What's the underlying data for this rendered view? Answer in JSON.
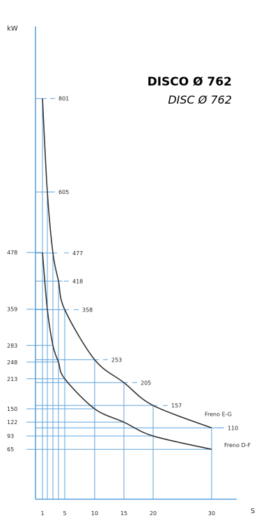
{
  "chart_data": {
    "type": "line",
    "title": "DISCO Ø 762",
    "subtitle": "DISC Ø 762",
    "ylabel": "kW",
    "xlabel": "S",
    "x_ticks": [
      1,
      5,
      10,
      15,
      20,
      30
    ],
    "y_ticks": [
      478,
      359,
      283,
      248,
      213,
      150,
      122,
      93,
      65
    ],
    "xlim": [
      0,
      30
    ],
    "grid_color": "#5da3dd",
    "curve_color": "#333333",
    "series": [
      {
        "name": "Freno E-G",
        "x": [
          1,
          2,
          3,
          4,
          5,
          10,
          15,
          20,
          30
        ],
        "values": [
          801,
          605,
          477,
          418,
          358,
          253,
          205,
          157,
          110
        ],
        "labels": [
          "801",
          "605",
          "477",
          "418",
          "358",
          "253",
          "205",
          "157",
          "110"
        ]
      },
      {
        "name": "Freno D-F",
        "x": [
          1,
          2,
          3,
          4,
          5,
          10,
          15,
          20,
          30
        ],
        "values": [
          478,
          359,
          283,
          248,
          213,
          150,
          122,
          93,
          65
        ]
      }
    ]
  }
}
